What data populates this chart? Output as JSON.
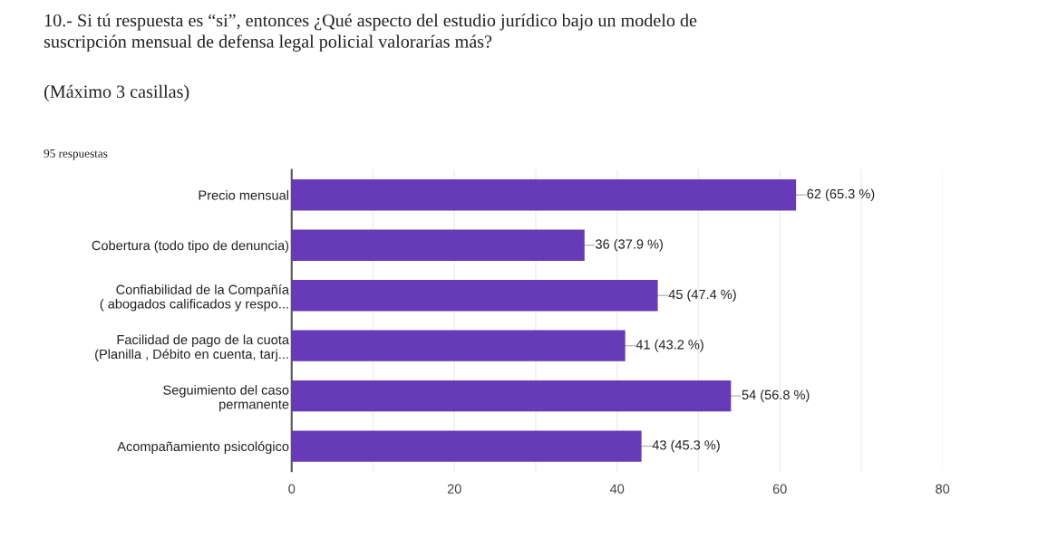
{
  "chart_data": {
    "type": "bar",
    "orientation": "horizontal",
    "title": "10.- Si tú respuesta es “si”, entonces ¿Qué aspecto del estudio jurídico bajo un modelo de\nsuscripción mensual de defensa legal policial valorarías más?",
    "subtitle": "(Máximo 3 casillas)",
    "annotations": [
      "95 respuestas"
    ],
    "categories": [
      "Precio mensual",
      "Cobertura (todo tipo de denuncia)",
      "Confiabilidad de la Compañía\n( abogados calificados y respo...",
      "Facilidad de pago de la cuota\n(Planilla , Débito en cuenta, tarj...",
      "Seguimiento del caso\npermanente",
      "Acompañamiento psicológico"
    ],
    "values": [
      62,
      36,
      45,
      41,
      54,
      43
    ],
    "value_labels": [
      "62 (65.3 %)",
      "36 (37.9 %)",
      "45 (47.4 %)",
      "41 (43.2 %)",
      "54 (56.8 %)",
      "43 (45.3 %)"
    ],
    "color": "#673ab7",
    "xlim": [
      0,
      80
    ],
    "xticks": [
      0,
      {
        "value": 10,
        "label": null
      },
      20,
      {
        "value": 30,
        "label": null
      },
      40,
      {
        "value": 50,
        "label": null
      },
      60,
      {
        "value": 70,
        "label": null
      },
      80
    ],
    "grid": "x"
  }
}
